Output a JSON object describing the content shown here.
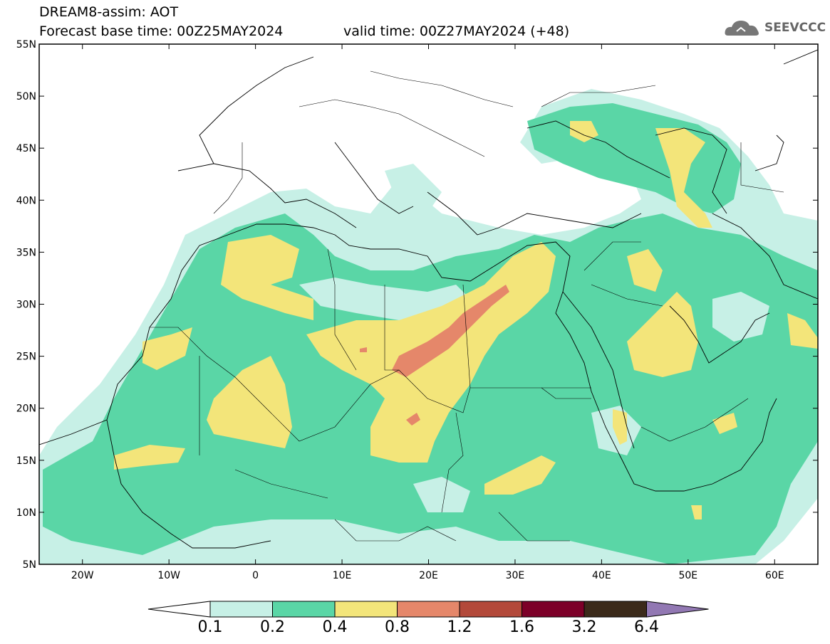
{
  "header": {
    "title": "DREAM8-assim: AOT",
    "base_time": "Forecast base time: 00Z25MAY2024",
    "valid_time": "valid time: 00Z27MAY2024 (+48)",
    "logo_text": "SEEVCCC"
  },
  "map": {
    "lon_range": [
      -25,
      65
    ],
    "lat_range": [
      5,
      55
    ],
    "lat_ticks": [
      "55N",
      "50N",
      "45N",
      "40N",
      "35N",
      "30N",
      "25N",
      "20N",
      "15N",
      "10N",
      "5N"
    ],
    "lon_ticks": [
      "20W",
      "10W",
      "0",
      "10E",
      "20E",
      "30E",
      "40E",
      "50E",
      "60E"
    ]
  },
  "colorbar": {
    "labels": [
      "0.1",
      "0.2",
      "0.4",
      "0.8",
      "1.2",
      "1.6",
      "3.2",
      "6.4"
    ],
    "colors": [
      "#c7f0e6",
      "#5ad6a6",
      "#f3e57a",
      "#e5876a",
      "#b3493a",
      "#7c0028",
      "#3b2a1a",
      "#9278b3"
    ]
  }
}
